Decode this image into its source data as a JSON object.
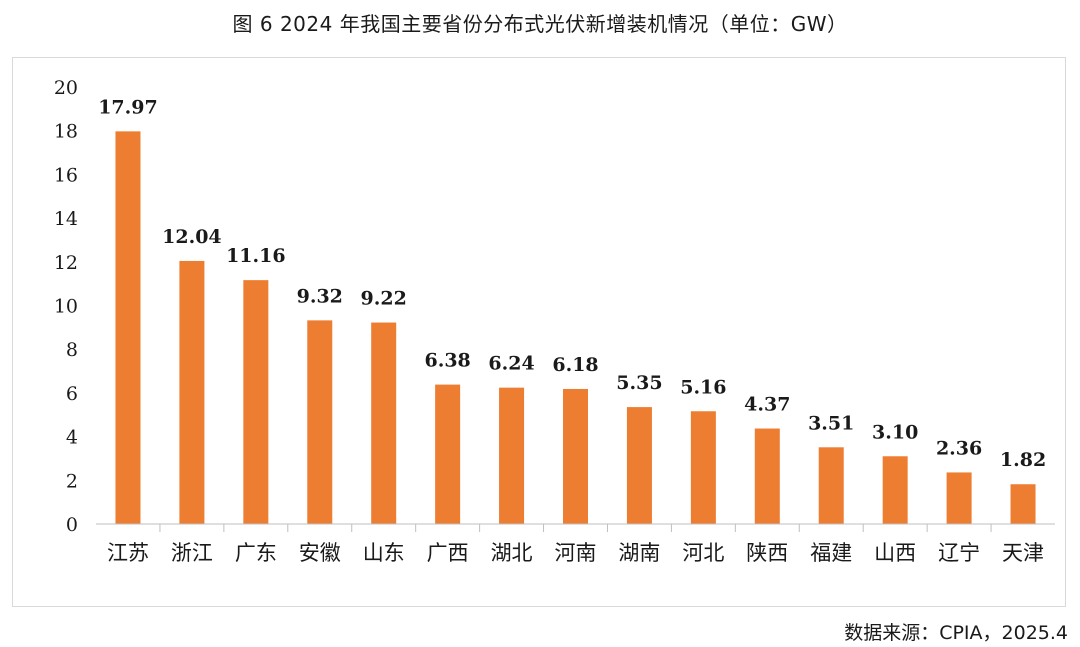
{
  "title": "图  6 2024 年我国主要省份分布式光伏新增装机情况（单位：GW）",
  "source": "数据来源：CPIA，2025.4",
  "colors": {
    "bar": "#ED7D31",
    "axis": "#bfbfbf",
    "text": "#1a1a1a"
  },
  "chart_data": {
    "type": "bar",
    "title": "图  6 2024 年我国主要省份分布式光伏新增装机情况（单位：GW）",
    "categories": [
      "江苏",
      "浙江",
      "广东",
      "安徽",
      "山东",
      "广西",
      "湖北",
      "河南",
      "湖南",
      "河北",
      "陕西",
      "福建",
      "山西",
      "辽宁",
      "天津"
    ],
    "values": [
      17.97,
      12.04,
      11.16,
      9.32,
      9.22,
      6.38,
      6.24,
      6.18,
      5.35,
      5.16,
      4.37,
      3.51,
      3.1,
      2.36,
      1.82
    ],
    "data_labels": [
      "17.97",
      "12.04",
      "11.16",
      "9.32",
      "9.22",
      "6.38",
      "6.24",
      "6.18",
      "5.35",
      "5.16",
      "4.37",
      "3.51",
      "3.10",
      "2.36",
      "1.82"
    ],
    "ylim": [
      0,
      20
    ],
    "yticks": [
      "0",
      "2",
      "4",
      "6",
      "8",
      "10",
      "12",
      "14",
      "16",
      "18",
      "20"
    ],
    "grid": false,
    "legend": "none",
    "xlabel": "",
    "ylabel": ""
  }
}
